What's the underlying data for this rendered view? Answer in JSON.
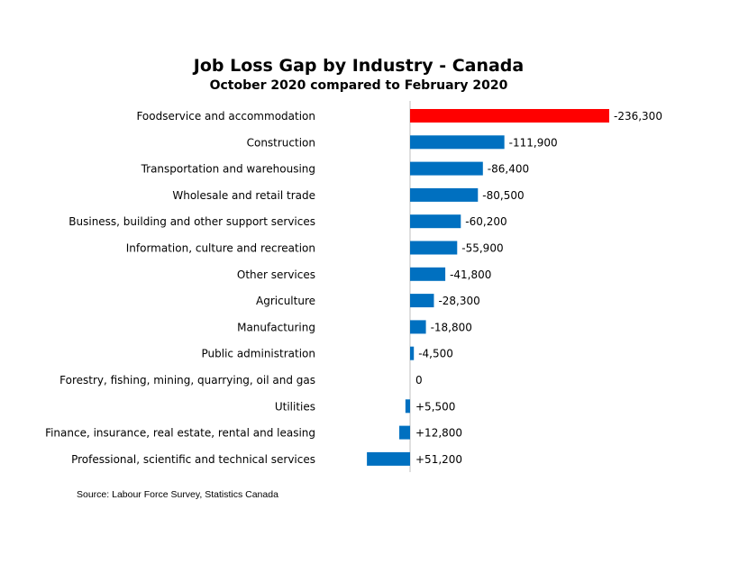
{
  "chart_data": {
    "type": "bar",
    "orientation": "horizontal",
    "title": "Job Loss Gap by Industry - Canada",
    "subtitle": "October 2020 compared to February 2020",
    "categories": [
      "Foodservice and accommodation",
      "Construction",
      "Transportation and warehousing",
      "Wholesale and retail trade",
      "Business, building and other support services",
      "Information, culture and recreation",
      "Other services",
      "Agriculture",
      "Manufacturing",
      "Public administration",
      "Forestry, fishing, mining, quarrying, oil and gas",
      "Utilities",
      "Finance, insurance, real estate, rental and leasing",
      "Professional, scientific and technical services"
    ],
    "values": [
      -236300,
      -111900,
      -86400,
      -80500,
      -60200,
      -55900,
      -41800,
      -28300,
      -18800,
      -4500,
      0,
      5500,
      12800,
      51200
    ],
    "data_labels": [
      "-236,300",
      "-111,900",
      "-86,400",
      "-80,500",
      "-60,200",
      "-55,900",
      "-41,800",
      "-28,300",
      "-18,800",
      "-4,500",
      "0",
      "+5,500",
      "+12,800",
      "+51,200"
    ],
    "bar_direction": "job losses extend right of the zero line, job gains extend left",
    "colors": {
      "highlight": "#ff0000",
      "default": "#0070c0",
      "axis": "#bfbfbf"
    },
    "highlight_index": 0,
    "grid": false,
    "legend": "none",
    "source": "Source: Labour Force Survey, Statistics Canada"
  }
}
